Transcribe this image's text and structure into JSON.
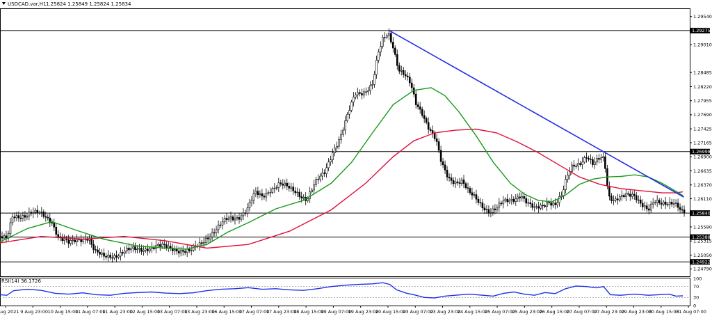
{
  "header": {
    "symbol": "USDCAD.var,H1",
    "ohlc": "1.25824 1.25849 1.25824 1.25834"
  },
  "rsi_panel": {
    "label": "RSI(14) 36.1726"
  },
  "chart_data": [
    {
      "type": "candlestick",
      "title": "USDCAD.var,H1",
      "ylim": [
        1.2465,
        1.2968
      ],
      "price_ticks": [
        "1.29540",
        "1.29010",
        "1.28485",
        "1.28220",
        "1.27955",
        "1.27690",
        "1.27425",
        "1.27165",
        "1.26900",
        "1.26635",
        "1.26370",
        "1.26110",
        "1.25580",
        "1.25315",
        "1.25050",
        "1.24790"
      ],
      "x_labels": [
        "9 Aug 2021",
        "9 Aug 23:00",
        "10 Aug 15:00",
        "11 Aug 07:00",
        "11 Aug 23:00",
        "12 Aug 15:00",
        "13 Aug 07:00",
        "13 Aug 23:00",
        "16 Aug 15:00",
        "17 Aug 07:00",
        "17 Aug 23:00",
        "18 Aug 15:00",
        "19 Aug 07:00",
        "19 Aug 23:00",
        "20 Aug 15:00",
        "23 Aug 07:00",
        "23 Aug 23:00",
        "24 Aug 15:00",
        "25 Aug 07:00",
        "25 Aug 23:00",
        "26 Aug 15:00",
        "27 Aug 07:00",
        "27 Aug 23:00",
        "29 Aug 23:00",
        "30 Aug 15:00",
        "31 Aug 07:00"
      ],
      "levels": [
        {
          "label": "1.29275",
          "value": 1.29275
        },
        {
          "label": "1.26998",
          "value": 1.26998
        },
        {
          "label": "1.25840",
          "value": 1.2584
        },
        {
          "label": "1.25388",
          "value": 1.25388
        },
        {
          "label": "1.24922",
          "value": 1.24922
        }
      ],
      "trendline": {
        "from": [
          0.5645,
          1.29275
        ],
        "to": [
          0.9915,
          1.2614
        ]
      },
      "close_path": [
        [
          0.0,
          1.254
        ],
        [
          0.01,
          1.2532
        ],
        [
          0.018,
          1.2575
        ],
        [
          0.03,
          1.258
        ],
        [
          0.045,
          1.2585
        ],
        [
          0.06,
          1.258
        ],
        [
          0.075,
          1.257
        ],
        [
          0.085,
          1.254
        ],
        [
          0.1,
          1.2525
        ],
        [
          0.115,
          1.2535
        ],
        [
          0.128,
          1.254
        ],
        [
          0.138,
          1.251
        ],
        [
          0.15,
          1.25
        ],
        [
          0.165,
          1.2505
        ],
        [
          0.18,
          1.2512
        ],
        [
          0.2,
          1.2515
        ],
        [
          0.215,
          1.252
        ],
        [
          0.23,
          1.252
        ],
        [
          0.25,
          1.2518
        ],
        [
          0.262,
          1.2515
        ],
        [
          0.275,
          1.251
        ],
        [
          0.29,
          1.2525
        ],
        [
          0.3,
          1.254
        ],
        [
          0.315,
          1.2555
        ],
        [
          0.33,
          1.2572
        ],
        [
          0.345,
          1.2578
        ],
        [
          0.358,
          1.259
        ],
        [
          0.37,
          1.262
        ],
        [
          0.38,
          1.2615
        ],
        [
          0.392,
          1.263
        ],
        [
          0.405,
          1.2638
        ],
        [
          0.418,
          1.263
        ],
        [
          0.43,
          1.2625
        ],
        [
          0.445,
          1.261
        ],
        [
          0.458,
          1.264
        ],
        [
          0.47,
          1.266
        ],
        [
          0.482,
          1.27
        ],
        [
          0.495,
          1.273
        ],
        [
          0.505,
          1.277
        ],
        [
          0.515,
          1.281
        ],
        [
          0.53,
          1.2815
        ],
        [
          0.54,
          1.2825
        ],
        [
          0.548,
          1.288
        ],
        [
          0.555,
          1.291
        ],
        [
          0.563,
          1.2925
        ],
        [
          0.57,
          1.29
        ],
        [
          0.578,
          1.2855
        ],
        [
          0.585,
          1.2845
        ],
        [
          0.595,
          1.2825
        ],
        [
          0.603,
          1.279
        ],
        [
          0.612,
          1.2775
        ],
        [
          0.622,
          1.2745
        ],
        [
          0.632,
          1.272
        ],
        [
          0.64,
          1.2675
        ],
        [
          0.65,
          1.265
        ],
        [
          0.66,
          1.2645
        ],
        [
          0.67,
          1.2645
        ],
        [
          0.68,
          1.262
        ],
        [
          0.69,
          1.261
        ],
        [
          0.7,
          1.2598
        ],
        [
          0.71,
          1.2588
        ],
        [
          0.72,
          1.2592
        ],
        [
          0.73,
          1.2603
        ],
        [
          0.742,
          1.261
        ],
        [
          0.755,
          1.262
        ],
        [
          0.765,
          1.26
        ],
        [
          0.775,
          1.259
        ],
        [
          0.785,
          1.2598
        ],
        [
          0.795,
          1.2608
        ],
        [
          0.805,
          1.26
        ],
        [
          0.815,
          1.2615
        ],
        [
          0.822,
          1.265
        ],
        [
          0.83,
          1.2675
        ],
        [
          0.84,
          1.268
        ],
        [
          0.85,
          1.269
        ],
        [
          0.86,
          1.2672
        ],
        [
          0.868,
          1.2685
        ],
        [
          0.876,
          1.269
        ],
        [
          0.882,
          1.262
        ],
        [
          0.89,
          1.261
        ],
        [
          0.9,
          1.2612
        ],
        [
          0.91,
          1.2615
        ],
        [
          0.92,
          1.2618
        ],
        [
          0.93,
          1.2605
        ],
        [
          0.94,
          1.259
        ],
        [
          0.948,
          1.2602
        ],
        [
          0.958,
          1.26
        ],
        [
          0.968,
          1.2605
        ],
        [
          0.976,
          1.2608
        ],
        [
          0.982,
          1.26
        ],
        [
          0.988,
          1.2585
        ],
        [
          0.992,
          1.2583
        ]
      ],
      "ma_fast_green": [
        [
          0.0,
          1.253
        ],
        [
          0.04,
          1.2555
        ],
        [
          0.075,
          1.2568
        ],
        [
          0.11,
          1.2552
        ],
        [
          0.15,
          1.2535
        ],
        [
          0.2,
          1.2522
        ],
        [
          0.24,
          1.2518
        ],
        [
          0.27,
          1.2516
        ],
        [
          0.3,
          1.2525
        ],
        [
          0.33,
          1.2548
        ],
        [
          0.36,
          1.2566
        ],
        [
          0.4,
          1.2592
        ],
        [
          0.44,
          1.2608
        ],
        [
          0.48,
          1.264
        ],
        [
          0.51,
          1.268
        ],
        [
          0.54,
          1.2735
        ],
        [
          0.57,
          1.2788
        ],
        [
          0.6,
          1.2815
        ],
        [
          0.625,
          1.282
        ],
        [
          0.645,
          1.2805
        ],
        [
          0.665,
          1.2775
        ],
        [
          0.69,
          1.273
        ],
        [
          0.715,
          1.268
        ],
        [
          0.74,
          1.264
        ],
        [
          0.76,
          1.262
        ],
        [
          0.78,
          1.2608
        ],
        [
          0.8,
          1.2605
        ],
        [
          0.82,
          1.2618
        ],
        [
          0.84,
          1.2638
        ],
        [
          0.86,
          1.2648
        ],
        [
          0.88,
          1.2652
        ],
        [
          0.9,
          1.2653
        ],
        [
          0.92,
          1.2656
        ],
        [
          0.94,
          1.2652
        ],
        [
          0.96,
          1.264
        ],
        [
          0.98,
          1.2625
        ],
        [
          0.99,
          1.2617
        ]
      ],
      "ma_slow_red": [
        [
          0.0,
          1.2528
        ],
        [
          0.06,
          1.254
        ],
        [
          0.12,
          1.2535
        ],
        [
          0.18,
          1.254
        ],
        [
          0.24,
          1.2532
        ],
        [
          0.3,
          1.2518
        ],
        [
          0.36,
          1.2525
        ],
        [
          0.42,
          1.255
        ],
        [
          0.48,
          1.259
        ],
        [
          0.53,
          1.264
        ],
        [
          0.57,
          1.269
        ],
        [
          0.6,
          1.272
        ],
        [
          0.63,
          1.2735
        ],
        [
          0.66,
          1.274
        ],
        [
          0.69,
          1.2742
        ],
        [
          0.72,
          1.2735
        ],
        [
          0.75,
          1.2718
        ],
        [
          0.78,
          1.2698
        ],
        [
          0.81,
          1.2675
        ],
        [
          0.84,
          1.2652
        ],
        [
          0.87,
          1.2638
        ],
        [
          0.9,
          1.263
        ],
        [
          0.93,
          1.2626
        ],
        [
          0.96,
          1.2622
        ],
        [
          0.98,
          1.2622
        ],
        [
          0.99,
          1.2624
        ]
      ],
      "rsi": {
        "ylim": [
          0,
          100
        ],
        "levels": [
          70,
          30
        ],
        "tick_labels": [
          "100",
          "70",
          "30",
          "0"
        ],
        "values": [
          [
            0.0,
            40
          ],
          [
            0.01,
            38
          ],
          [
            0.02,
            55
          ],
          [
            0.04,
            60
          ],
          [
            0.06,
            56
          ],
          [
            0.08,
            45
          ],
          [
            0.1,
            42
          ],
          [
            0.12,
            47
          ],
          [
            0.14,
            40
          ],
          [
            0.16,
            38
          ],
          [
            0.18,
            45
          ],
          [
            0.2,
            48
          ],
          [
            0.22,
            50
          ],
          [
            0.24,
            46
          ],
          [
            0.26,
            44
          ],
          [
            0.28,
            47
          ],
          [
            0.3,
            55
          ],
          [
            0.32,
            60
          ],
          [
            0.34,
            62
          ],
          [
            0.36,
            66
          ],
          [
            0.38,
            60
          ],
          [
            0.4,
            62
          ],
          [
            0.42,
            58
          ],
          [
            0.44,
            56
          ],
          [
            0.46,
            62
          ],
          [
            0.48,
            70
          ],
          [
            0.5,
            75
          ],
          [
            0.52,
            78
          ],
          [
            0.54,
            80
          ],
          [
            0.555,
            84
          ],
          [
            0.565,
            78
          ],
          [
            0.575,
            58
          ],
          [
            0.59,
            45
          ],
          [
            0.6,
            40
          ],
          [
            0.615,
            30
          ],
          [
            0.63,
            28
          ],
          [
            0.645,
            35
          ],
          [
            0.66,
            38
          ],
          [
            0.68,
            42
          ],
          [
            0.7,
            38
          ],
          [
            0.715,
            35
          ],
          [
            0.73,
            45
          ],
          [
            0.745,
            50
          ],
          [
            0.76,
            42
          ],
          [
            0.775,
            38
          ],
          [
            0.79,
            48
          ],
          [
            0.805,
            44
          ],
          [
            0.82,
            62
          ],
          [
            0.835,
            72
          ],
          [
            0.85,
            70
          ],
          [
            0.865,
            65
          ],
          [
            0.875,
            70
          ],
          [
            0.885,
            40
          ],
          [
            0.9,
            38
          ],
          [
            0.92,
            42
          ],
          [
            0.94,
            38
          ],
          [
            0.955,
            40
          ],
          [
            0.97,
            42
          ],
          [
            0.98,
            35
          ],
          [
            0.99,
            36
          ]
        ]
      }
    }
  ]
}
